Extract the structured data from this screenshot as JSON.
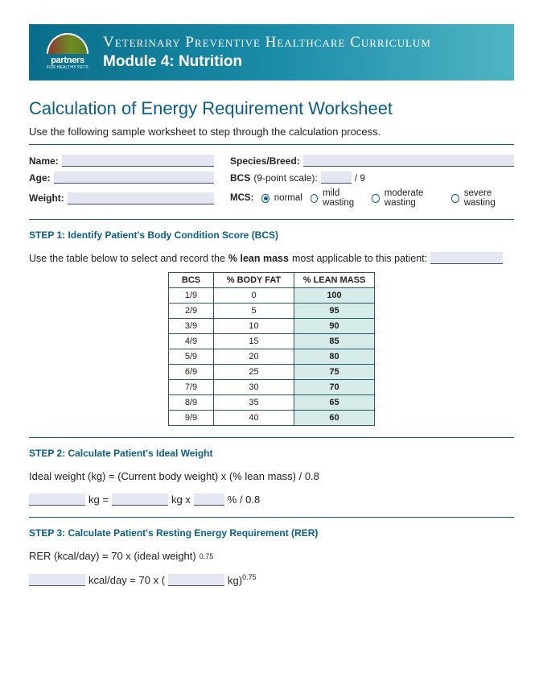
{
  "banner": {
    "logo_name": "partners",
    "logo_sub": "FOR HEALTHY PETS",
    "title": "Veterinary Preventive Healthcare Curriculum",
    "module": "Module 4: Nutrition"
  },
  "doc_title": "Calculation of Energy Requirement Worksheet",
  "intro": "Use the following sample worksheet to step through the calculation process.",
  "form": {
    "name_label": "Name:",
    "age_label": "Age:",
    "weight_label": "Weight:",
    "species_label": "Species/Breed:",
    "bcs_label": "BCS",
    "bcs_paren": "(9-point scale):",
    "bcs_suffix": "/ 9",
    "mcs_label": "MCS:",
    "mcs_options": {
      "normal": "normal",
      "mild": "mild wasting",
      "moderate": "moderate wasting",
      "severe": "severe wasting"
    },
    "mcs_selected": "normal"
  },
  "step1": {
    "heading": "STEP 1: Identify Patient's Body Condition Score (BCS)",
    "text_a": "Use the table below to select and record the ",
    "text_b": "% lean mass",
    "text_c": " most applicable to this patient:",
    "table": {
      "headers": {
        "bcs": "BCS",
        "fat": "% BODY FAT",
        "lean": "% LEAN MASS"
      },
      "rows": [
        {
          "bcs": "1/9",
          "fat": "0",
          "lean": "100"
        },
        {
          "bcs": "2/9",
          "fat": "5",
          "lean": "95"
        },
        {
          "bcs": "3/9",
          "fat": "10",
          "lean": "90"
        },
        {
          "bcs": "4/9",
          "fat": "15",
          "lean": "85"
        },
        {
          "bcs": "5/9",
          "fat": "20",
          "lean": "80"
        },
        {
          "bcs": "6/9",
          "fat": "25",
          "lean": "75"
        },
        {
          "bcs": "7/9",
          "fat": "30",
          "lean": "70"
        },
        {
          "bcs": "8/9",
          "fat": "35",
          "lean": "65"
        },
        {
          "bcs": "9/9",
          "fat": "40",
          "lean": "60"
        }
      ]
    }
  },
  "step2": {
    "heading": "STEP 2: Calculate Patient's Ideal Weight",
    "formula": "Ideal weight (kg) = (Current body weight) x (% lean mass) / 0.8",
    "eq": {
      "kg_eq": "kg =",
      "kg_x": "kg x",
      "tail": "% / 0.8"
    }
  },
  "step3": {
    "heading": "STEP 3: Calculate Patient's Resting Energy Requirement (RER)",
    "formula_a": "RER (kcal/day) = 70 x (ideal weight)",
    "formula_exp": "0.75",
    "eq": {
      "a": "kcal/day = 70 x (",
      "b": "kg)",
      "exp": "0.75"
    }
  },
  "colors": {
    "heading": "#0a5e88",
    "fill_bg": "#e4e6f2",
    "lean_bg": "#d7ebe8",
    "table_border": "#2a5a6a"
  }
}
